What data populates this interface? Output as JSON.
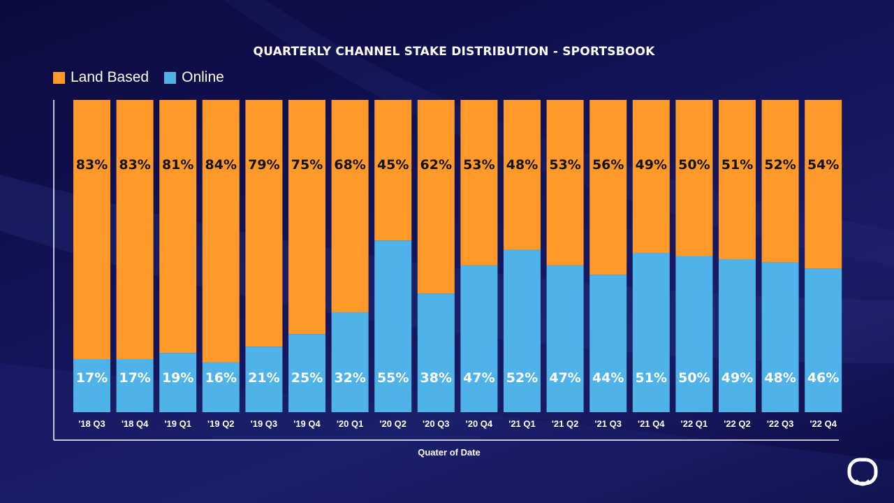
{
  "title": "QUARTERLY CHANNEL STAKE DISTRIBUTION - SPORTSBOOK",
  "legend": [
    {
      "label": "Land Based",
      "color": "#ff9a2a"
    },
    {
      "label": "Online",
      "color": "#4fb2e8"
    }
  ],
  "chart_data": {
    "type": "bar",
    "stacked": true,
    "title": "QUARTERLY CHANNEL STAKE DISTRIBUTION - SPORTSBOOK",
    "xlabel": "Quater of Date",
    "ylabel": "",
    "ylim": [
      0,
      100
    ],
    "legend_position": "top-left",
    "categories": [
      "'18 Q3",
      "'18 Q4",
      "'19 Q1",
      "'19 Q2",
      "'19 Q3",
      "'19 Q4",
      "'20 Q1",
      "'20 Q2",
      "'20 Q3",
      "'20 Q4",
      "'21 Q1",
      "'21 Q2",
      "'21 Q3",
      "'21 Q4",
      "'22 Q1",
      "'22 Q2",
      "'22 Q3",
      "'22 Q4"
    ],
    "series": [
      {
        "name": "Online",
        "color": "#4fb2e8",
        "label_color": "#ffffff",
        "values": [
          17,
          17,
          19,
          16,
          21,
          25,
          32,
          55,
          38,
          47,
          52,
          47,
          44,
          51,
          50,
          49,
          48,
          46
        ]
      },
      {
        "name": "Land Based",
        "color": "#ff9a2a",
        "label_color": "#111111",
        "values": [
          83,
          83,
          81,
          84,
          79,
          75,
          68,
          45,
          62,
          53,
          48,
          53,
          56,
          49,
          50,
          51,
          52,
          54
        ]
      }
    ]
  }
}
